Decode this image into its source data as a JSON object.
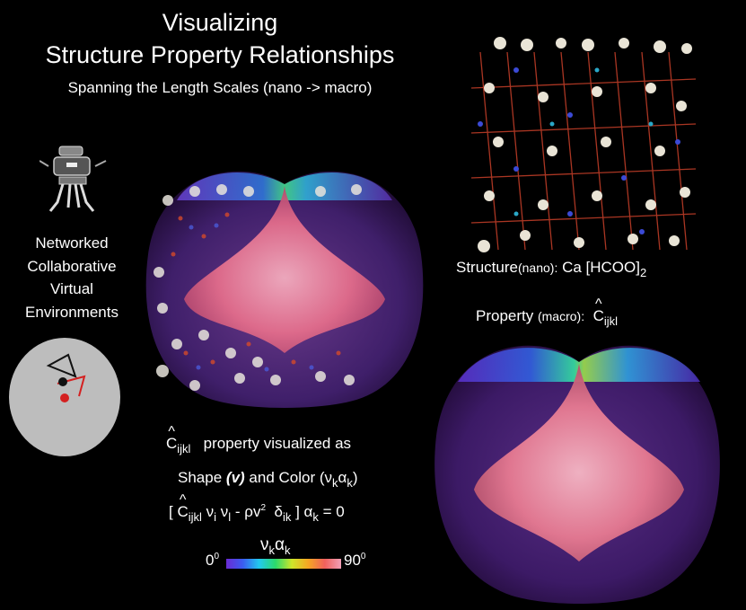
{
  "title": {
    "line1": "Visualizing",
    "line2": "Structure Property Relationships",
    "line3": "Spanning the Length Scales (nano -> macro)"
  },
  "network": {
    "lines": [
      "Networked",
      "Collaborative",
      "Virtual",
      "Environments"
    ]
  },
  "structure": {
    "prefix": "Structure",
    "scale": "(nano):",
    "formula_main": "Ca [HCOO]",
    "formula_sub": "2"
  },
  "property": {
    "prefix": "Property",
    "scale": "(macro):",
    "symbol_base": "C",
    "symbol_sub": "ijkl"
  },
  "equation": {
    "line1_symbol": "C",
    "line1_sub": "ijkl",
    "line1_text": "property visualized as",
    "line2_shape": "Shape",
    "line2_shape_var": "(v)",
    "line2_and": "and Color",
    "line2_color_var": "(ν",
    "line2_color_sub1": "k",
    "line2_color_alpha": "α",
    "line2_color_sub2": "k",
    "line2_close": ")",
    "line3_open": "[",
    "line3_C": "C",
    "line3_Csub": "ijkl",
    "line3_nu1": "ν",
    "line3_nu1sub": "i",
    "line3_nu2": "ν",
    "line3_nu2sub": "l",
    "line3_rho": "- ρv",
    "line3_rho_sup": "2",
    "line3_delta": "δ",
    "line3_deltasub": "ik",
    "line3_close": "] α",
    "line3_alpha_sub": "k",
    "line3_eq": "= 0"
  },
  "colorbar": {
    "title_nu": "ν",
    "title_nu_sub": "k",
    "title_alpha": "α",
    "title_alpha_sub": "k",
    "min": "0",
    "max": "90",
    "degree": "0"
  },
  "colors": {
    "background": "#000000",
    "sphere_gray": "#bdbdbd",
    "surface_pink": "#f07a92",
    "surface_purple": "#5a2fb0"
  }
}
